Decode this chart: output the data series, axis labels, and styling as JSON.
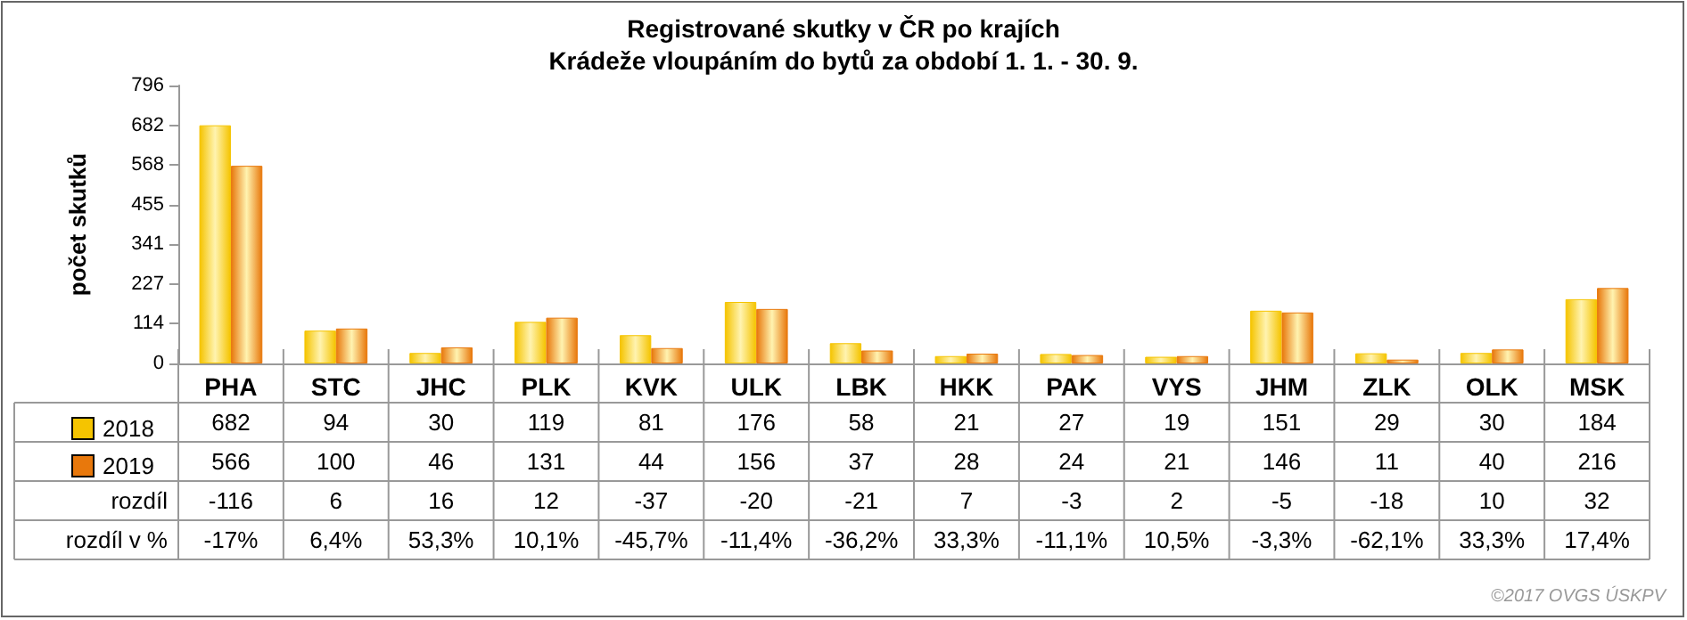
{
  "chart_data": {
    "type": "bar",
    "title": "Registrované skutky v ČR po krajích",
    "subtitle": "Krádeže vloupáním do bytů za období 1. 1. - 30. 9.",
    "ylabel": "počet skutků",
    "categories": [
      "PHA",
      "STC",
      "JHC",
      "PLK",
      "KVK",
      "ULK",
      "LBK",
      "HKK",
      "PAK",
      "VYS",
      "JHM",
      "ZLK",
      "OLK",
      "MSK"
    ],
    "series": [
      {
        "name": "2018",
        "color": "#f5c400",
        "values": [
          682,
          94,
          30,
          119,
          81,
          176,
          58,
          21,
          27,
          19,
          151,
          29,
          30,
          184
        ]
      },
      {
        "name": "2019",
        "color": "#e8780c",
        "values": [
          566,
          100,
          46,
          131,
          44,
          156,
          37,
          28,
          24,
          21,
          146,
          11,
          40,
          216
        ]
      }
    ],
    "ylim": [
      0,
      796
    ],
    "yticks": [
      0,
      114,
      227,
      341,
      455,
      568,
      682,
      796
    ],
    "data_labels": true,
    "legend": "bottom left",
    "annotations": [
      "rozdíl",
      "-116",
      "6",
      "16",
      "12",
      "-37",
      "-20",
      "-21",
      "7",
      "-3",
      "2",
      "-5",
      "-18",
      "10",
      "32",
      "rozdíl v %",
      "-17%",
      "6,4%",
      "53,3%",
      "10,1%",
      "-45,7%",
      "-11,4%",
      "-36,2%",
      "33,3%",
      "-11,1%",
      "10,5%",
      "-3,3%",
      "-62,1%",
      "33,3%",
      "17,4%",
      "©2017 OVGS ÚSKPV"
    ]
  }
}
